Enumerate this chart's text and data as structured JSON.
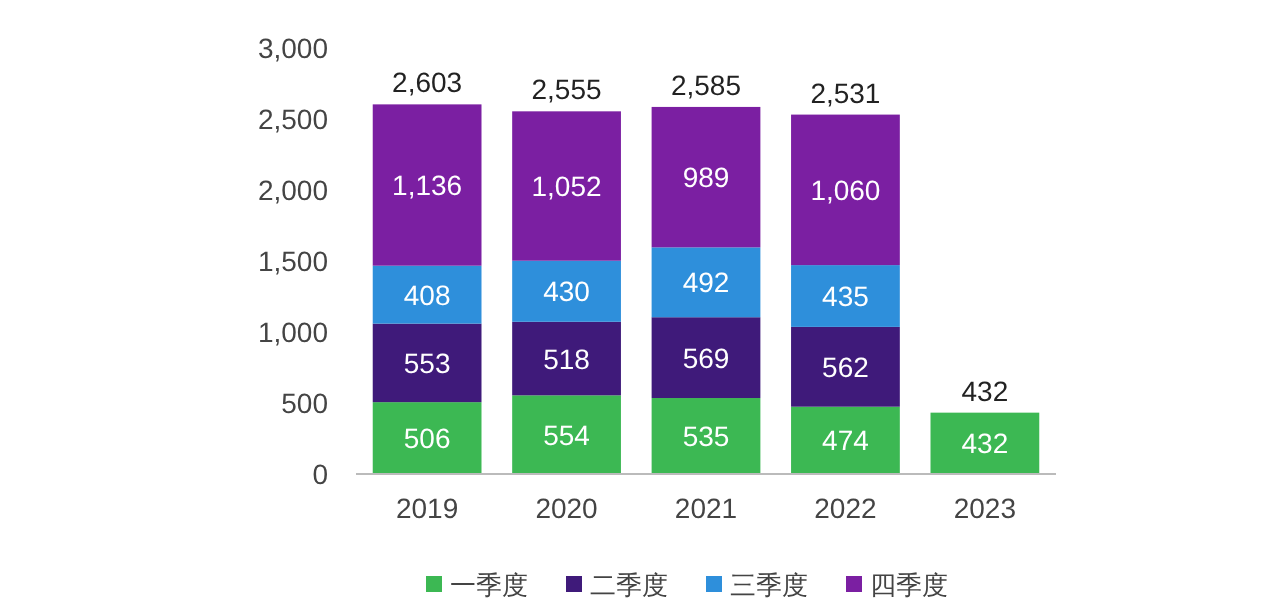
{
  "chart_data": {
    "type": "bar",
    "stacked": true,
    "categories": [
      "2019",
      "2020",
      "2021",
      "2022",
      "2023"
    ],
    "series": [
      {
        "name": "一季度",
        "color": "#3cb853",
        "values": [
          506,
          554,
          535,
          474,
          432
        ],
        "value_labels": [
          "506",
          "554",
          "535",
          "474",
          "432"
        ]
      },
      {
        "name": "二季度",
        "color": "#3f1a7a",
        "values": [
          553,
          518,
          569,
          562,
          null
        ],
        "value_labels": [
          "553",
          "518",
          "569",
          "562",
          null
        ]
      },
      {
        "name": "三季度",
        "color": "#2e8fdb",
        "values": [
          408,
          430,
          492,
          435,
          null
        ],
        "value_labels": [
          "408",
          "430",
          "492",
          "435",
          null
        ]
      },
      {
        "name": "四季度",
        "color": "#7b1fa2",
        "values": [
          1136,
          1052,
          989,
          1060,
          null
        ],
        "value_labels": [
          "1,136",
          "1,052",
          "989",
          "1,060",
          null
        ]
      }
    ],
    "totals": [
      "2,603",
      "2,555",
      "2,585",
      "2,531",
      "432"
    ],
    "ylim": [
      0,
      3000
    ],
    "yticks": [
      {
        "value": 0,
        "label": "0"
      },
      {
        "value": 500,
        "label": "500"
      },
      {
        "value": 1000,
        "label": "1,000"
      },
      {
        "value": 1500,
        "label": "1,500"
      },
      {
        "value": 2000,
        "label": "2,000"
      },
      {
        "value": 2500,
        "label": "2,500"
      },
      {
        "value": 3000,
        "label": "3,000"
      }
    ],
    "grid": false,
    "legend": "bottom"
  }
}
